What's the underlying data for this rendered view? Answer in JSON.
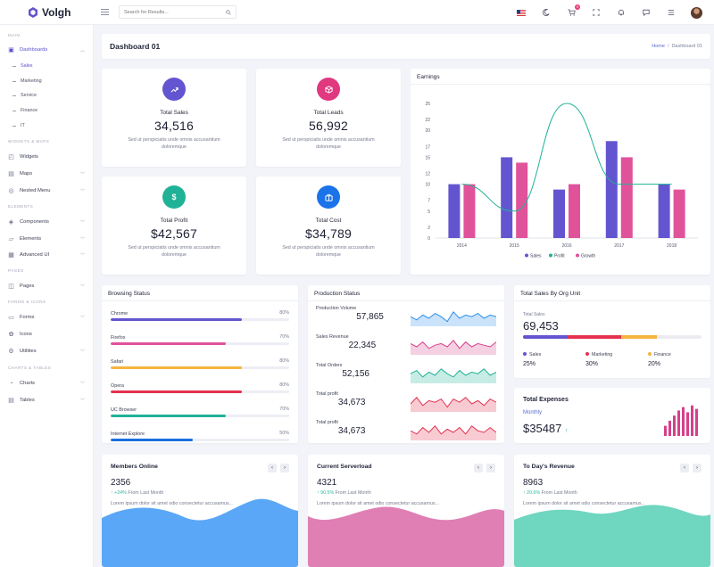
{
  "brand": {
    "name": "Volgh"
  },
  "search": {
    "placeholder": "Search for Results..."
  },
  "header": {
    "cart_count": "5"
  },
  "sidebar": {
    "categories": [
      "MAIN",
      "WIDGETS & MAPS",
      "ELEMENTS",
      "PAGES",
      "FORMS & ICONS",
      "CHARTS & TABLES"
    ],
    "dashboards": "Dashboards",
    "sub": [
      "Sales",
      "Marketing",
      "Service",
      "Finance",
      "IT"
    ],
    "items": [
      "Widgets",
      "Maps",
      "Nested Menu",
      "Components",
      "Elements",
      "Advanced UI",
      "Pages",
      "Forms",
      "Icons",
      "Utilities",
      "Charts",
      "Tables"
    ]
  },
  "page": {
    "title": "Dashboard 01",
    "crumb_home": "Home",
    "crumb_sep": "/",
    "crumb_current": "Dashboard 01"
  },
  "stats": [
    {
      "label": "Total Sales",
      "value": "34,516",
      "desc": "Sed ut perspiciatis unde omnis accusantium doloremque",
      "color": "#6355d0"
    },
    {
      "label": "Total Leads",
      "value": "56,992",
      "desc": "Sed ut perspiciatis unde omnis accusantium doloremque",
      "color": "#e0397f"
    },
    {
      "label": "Total Profit",
      "value": "$42,567",
      "desc": "Sed ut perspiciatis unde omnis accusantium doloremque",
      "color": "#20b296"
    },
    {
      "label": "Total Cost",
      "value": "$34,789",
      "desc": "Sed ut perspiciatis unde omnis accusantium doloremque",
      "color": "#1a73e8"
    }
  ],
  "earnings": {
    "title": "Earnings"
  },
  "chart_data": {
    "type": "bar",
    "title": "Earnings",
    "categories": [
      "2014",
      "2015",
      "2016",
      "2017",
      "2018"
    ],
    "series": [
      {
        "name": "Sales",
        "type": "bar",
        "color": "#6355d0",
        "values": [
          10,
          15,
          9,
          18,
          10
        ]
      },
      {
        "name": "Profit",
        "type": "line",
        "color": "#20b296",
        "values": [
          10,
          5,
          25,
          10,
          10
        ]
      },
      {
        "name": "Growth",
        "type": "bar",
        "color": "#e0539b",
        "values": [
          10,
          14,
          10,
          15,
          9
        ]
      }
    ],
    "yticks": [
      0,
      2,
      5,
      7,
      10,
      12,
      15,
      17,
      20,
      22,
      25
    ],
    "ylim": [
      0,
      25
    ],
    "grid": false,
    "legend": "bottom"
  },
  "browsing": {
    "title": "Browsing Status",
    "rows": [
      {
        "name": "Chrome",
        "pct": "80%",
        "value": 80,
        "color": "#6355d0"
      },
      {
        "name": "Firefox",
        "pct": "70%",
        "value": 70,
        "color": "#e0539b"
      },
      {
        "name": "Safari",
        "pct": "80%",
        "value": 80,
        "color": "#f4b63e"
      },
      {
        "name": "Opera",
        "pct": "80%",
        "value": 80,
        "color": "#e5314e"
      },
      {
        "name": "UC Browser",
        "pct": "70%",
        "value": 70,
        "color": "#20b296"
      },
      {
        "name": "Internet Explore",
        "pct": "50%",
        "value": 50,
        "color": "#1a6fe0"
      }
    ]
  },
  "production": {
    "title": "Production Status",
    "rows": [
      {
        "name": "Production Volume",
        "value": "57,865",
        "color": "#2d8fea"
      },
      {
        "name": "Sales Revenue",
        "value": "22,345",
        "color": "#d6408a"
      },
      {
        "name": "Total Orders",
        "value": "52,156",
        "color": "#20b296"
      },
      {
        "name": "Total profit",
        "value": "34,673",
        "color": "#e5314e"
      },
      {
        "name": "Total profit",
        "value": "34,673",
        "color": "#e5314e"
      }
    ]
  },
  "org": {
    "title": "Total Sales By Org Unit",
    "label": "Total Sales",
    "value": "69,453",
    "segments": [
      {
        "name": "Sales",
        "pct": "25%",
        "value": 25,
        "color": "#6355d0"
      },
      {
        "name": "Marketing",
        "pct": "30%",
        "value": 30,
        "color": "#e5314e"
      },
      {
        "name": "Finance",
        "pct": "20%",
        "value": 20,
        "color": "#f4b63e"
      }
    ]
  },
  "expenses": {
    "title": "Total Expenses",
    "sub": "Monthly",
    "value": "$35487",
    "bars": [
      6,
      9,
      12,
      15,
      17,
      14,
      18,
      16
    ],
    "color": "#d6408a"
  },
  "bottom": [
    {
      "title": "Members Online",
      "value": "2356",
      "change": "+24%",
      "change_text": "From Last Month",
      "desc": "Lorem ipsum dolor sit amet odio consectetur accusamus...",
      "color": "#5aa7f7"
    },
    {
      "title": "Current Serverload",
      "value": "4321",
      "change": "90.5%",
      "change_text": "From Last Month",
      "desc": "Lorem ipsum dolor sit amet odio consectetur accusamus...",
      "color": "#df7fb4"
    },
    {
      "title": "To Day's Revenue",
      "value": "8963",
      "change": "20.6%",
      "change_text": "From Last Month",
      "desc": "Lorem ipsum dolor sit amet odio consectetur accusamus...",
      "color": "#6fd6c0"
    }
  ]
}
